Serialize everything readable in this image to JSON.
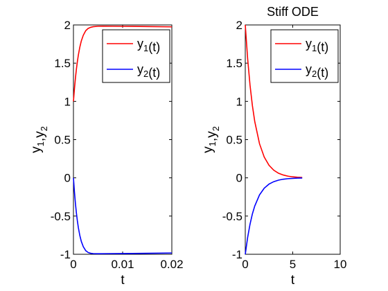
{
  "chart_data": [
    {
      "type": "line",
      "title": "",
      "xlabel": "t",
      "ylabel": "y1,y2",
      "xlim": [
        0,
        0.02
      ],
      "ylim": [
        -1,
        2
      ],
      "xticks": [
        "0",
        "0.01",
        "0.02"
      ],
      "yticks": [
        "-1",
        "-0.5",
        "0",
        "0.5",
        "1",
        "1.5",
        "2"
      ],
      "grid": false,
      "legend_position": "top-right",
      "series": [
        {
          "name": "y1(t)",
          "color": "#ff0000",
          "x": [
            0,
            0.0002,
            0.0004,
            0.0006,
            0.0008,
            0.001,
            0.0013,
            0.0016,
            0.002,
            0.0025,
            0.003,
            0.0035,
            0.004,
            0.005,
            0.006,
            0.008,
            0.01,
            0.012,
            0.015,
            0.02
          ],
          "y": [
            1.0,
            1.163,
            1.302,
            1.421,
            1.521,
            1.607,
            1.711,
            1.791,
            1.865,
            1.925,
            1.955,
            1.969,
            1.977,
            1.983,
            1.984,
            1.983,
            1.982,
            1.981,
            1.979,
            1.975
          ]
        },
        {
          "name": "y2(t)",
          "color": "#0000ff",
          "x": [
            0,
            0.0002,
            0.0004,
            0.0006,
            0.0008,
            0.001,
            0.0013,
            0.0016,
            0.002,
            0.0025,
            0.003,
            0.0035,
            0.004,
            0.005,
            0.006,
            0.008,
            0.01,
            0.012,
            0.015,
            0.02
          ],
          "y": [
            0.0,
            -0.181,
            -0.333,
            -0.459,
            -0.564,
            -0.652,
            -0.755,
            -0.832,
            -0.901,
            -0.953,
            -0.977,
            -0.987,
            -0.991,
            -0.993,
            -0.992,
            -0.991,
            -0.99,
            -0.989,
            -0.987,
            -0.983
          ]
        }
      ]
    },
    {
      "type": "line",
      "title": "Stiff ODE",
      "xlabel": "t",
      "ylabel": "y1,y2",
      "xlim": [
        0,
        10
      ],
      "ylim": [
        -1,
        2
      ],
      "xticks": [
        "0",
        "5",
        "10"
      ],
      "yticks": [
        "-1",
        "-0.5",
        "0",
        "0.5",
        "1",
        "1.5",
        "2"
      ],
      "grid": false,
      "legend_position": "top-right",
      "series": [
        {
          "name": "y1(t)",
          "color": "#ff0000",
          "x": [
            0,
            0.25,
            0.5,
            0.75,
            1,
            1.5,
            2,
            2.5,
            3,
            3.5,
            4,
            4.5,
            5,
            5.5,
            6
          ],
          "y": [
            2.0,
            1.557,
            1.213,
            0.945,
            0.736,
            0.446,
            0.271,
            0.164,
            0.1,
            0.06,
            0.037,
            0.022,
            0.013,
            0.008,
            0.005
          ]
        },
        {
          "name": "y2(t)",
          "color": "#0000ff",
          "x": [
            0,
            0.25,
            0.5,
            0.75,
            1,
            1.5,
            2,
            2.5,
            3,
            3.5,
            4,
            4.5,
            5,
            5.5,
            6
          ],
          "y": [
            -1.0,
            -0.779,
            -0.607,
            -0.472,
            -0.368,
            -0.223,
            -0.135,
            -0.082,
            -0.05,
            -0.03,
            -0.018,
            -0.011,
            -0.007,
            -0.004,
            -0.002
          ]
        }
      ]
    }
  ]
}
